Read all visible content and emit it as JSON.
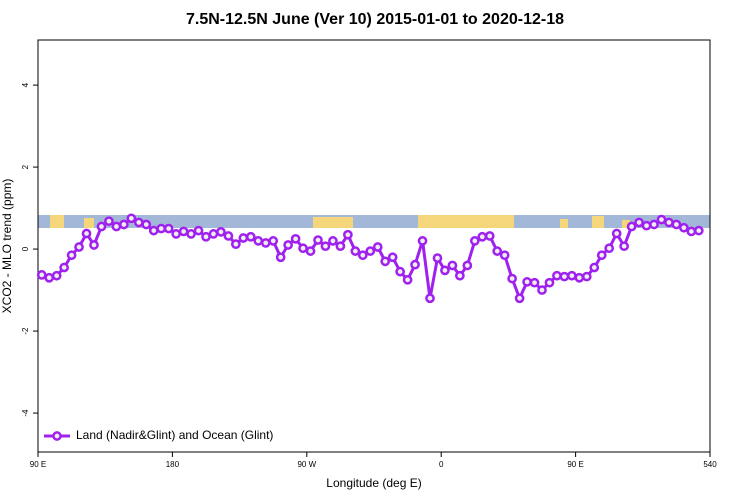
{
  "chart_data": {
    "type": "line",
    "title": "7.5N-12.5N June (Ver 10)   2015-01-01 to 2020-12-18",
    "xlabel": "Longitude (deg E)",
    "ylabel": "XCO2 - MLO trend (ppm)",
    "xlim": [
      90,
      540
    ],
    "ylim": [
      -4.95,
      5.1
    ],
    "xticks": [
      {
        "value": 90,
        "label": "90 E"
      },
      180,
      {
        "value": 270,
        "label": "90 W"
      },
      {
        "value": 360,
        "label": "0"
      },
      {
        "value": 450,
        "label": "90 E"
      },
      540
    ],
    "yticks": [
      -4,
      -2,
      0,
      2,
      4
    ],
    "legend": "bottom-left",
    "x": [
      92.5,
      97.5,
      102.5,
      107.5,
      112.5,
      117.5,
      122.5,
      127.5,
      132.5,
      137.5,
      142.5,
      147.5,
      152.5,
      157.5,
      162.5,
      167.5,
      172.5,
      177.5,
      182.5,
      187.5,
      192.5,
      197.5,
      202.5,
      207.5,
      212.5,
      217.5,
      222.5,
      227.5,
      232.5,
      237.5,
      242.5,
      247.5,
      252.5,
      257.5,
      262.5,
      267.5,
      272.5,
      277.5,
      282.5,
      287.5,
      292.5,
      297.5,
      302.5,
      307.5,
      312.5,
      317.5,
      322.5,
      327.5,
      332.5,
      337.5,
      342.5,
      347.5,
      352.5,
      357.5,
      362.5,
      367.5,
      372.5,
      377.5,
      382.5,
      387.5,
      392.5,
      397.5,
      402.5,
      407.5,
      412.5,
      417.5,
      422.5,
      427.5,
      432.5,
      437.5,
      442.5,
      447.5,
      452.5,
      457.5,
      462.5,
      467.5,
      472.5,
      477.5,
      482.5,
      487.5,
      492.5,
      497.5,
      502.5,
      507.5,
      512.5,
      517.5,
      522.5,
      527.5,
      532.5
    ],
    "series": [
      {
        "name": "Land (Nadir&Glint) and Ocean (Glint)",
        "color": "#a020f0",
        "values": [
          -0.63,
          -0.7,
          -0.65,
          -0.45,
          -0.15,
          0.05,
          0.38,
          0.1,
          0.55,
          0.68,
          0.55,
          0.6,
          0.75,
          0.65,
          0.6,
          0.45,
          0.5,
          0.5,
          0.37,
          0.43,
          0.37,
          0.45,
          0.3,
          0.37,
          0.42,
          0.32,
          0.12,
          0.27,
          0.3,
          0.2,
          0.15,
          0.2,
          -0.2,
          0.1,
          0.25,
          0.02,
          -0.05,
          0.22,
          0.07,
          0.2,
          0.07,
          0.35,
          -0.05,
          -0.15,
          -0.05,
          0.05,
          -0.3,
          -0.2,
          -0.55,
          -0.75,
          -0.38,
          0.2,
          -1.2,
          -0.22,
          -0.52,
          -0.4,
          -0.65,
          -0.4,
          0.2,
          0.3,
          0.32,
          -0.05,
          -0.15,
          -0.72,
          -1.2,
          -0.8,
          -0.82,
          -1.0,
          -0.82,
          -0.65,
          -0.67,
          -0.65,
          -0.7,
          -0.67,
          -0.45,
          -0.15,
          0.02,
          0.38,
          0.07,
          0.55,
          0.65,
          0.57,
          0.6,
          0.72,
          0.65,
          0.6,
          0.52,
          0.43,
          0.45
        ]
      }
    ]
  }
}
